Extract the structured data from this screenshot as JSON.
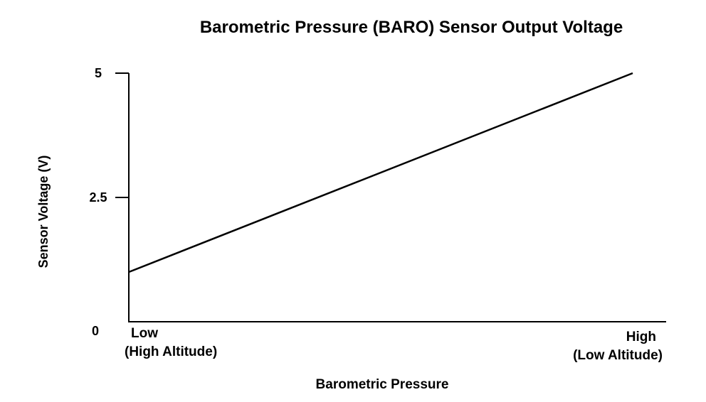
{
  "chart_data": {
    "type": "line",
    "title": "Barometric Pressure (BARO) Sensor Output Voltage",
    "xlabel": "Barometric Pressure",
    "ylabel": "Sensor Voltage (V)",
    "x_tick_labels": {
      "low": [
        "Low",
        "(High Altitude)"
      ],
      "high": [
        "High",
        "(Low Altitude)"
      ]
    },
    "y_ticks": [
      {
        "value": 5,
        "label": "5"
      },
      {
        "value": 2.5,
        "label": "2.5"
      }
    ],
    "y_zero_label": "0",
    "ylim": [
      0,
      5
    ],
    "xlim": [
      0,
      1
    ],
    "series": [
      {
        "x": [
          0,
          1
        ],
        "y": [
          1.0,
          5.0
        ]
      }
    ],
    "line_color": "#000000",
    "grid": false,
    "legend": "none"
  }
}
